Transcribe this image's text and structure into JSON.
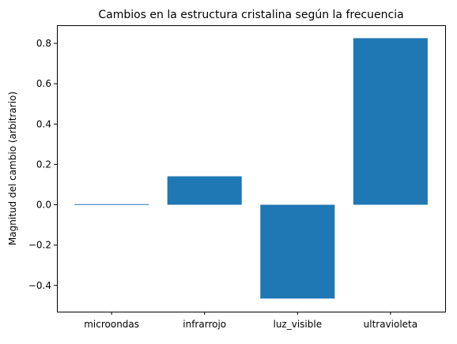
{
  "chart_data": {
    "type": "bar",
    "title": "Cambios en la estructura cristalina según la frecuencia",
    "xlabel": "",
    "ylabel": "Magnitud del cambio (arbitrario)",
    "categories": [
      "microondas",
      "infrarrojo",
      "luz_visible",
      "ultravioleta"
    ],
    "values": [
      0.003,
      0.141,
      -0.465,
      0.826
    ],
    "ylim": [
      -0.53,
      0.89
    ],
    "yticks": [
      -0.4,
      -0.2,
      0.0,
      0.2,
      0.4,
      0.6,
      0.8
    ],
    "ytick_labels": [
      "−0.4",
      "−0.2",
      "0.0",
      "0.2",
      "0.4",
      "0.6",
      "0.8"
    ],
    "grid": false,
    "bar_color": "#1f77b4"
  }
}
